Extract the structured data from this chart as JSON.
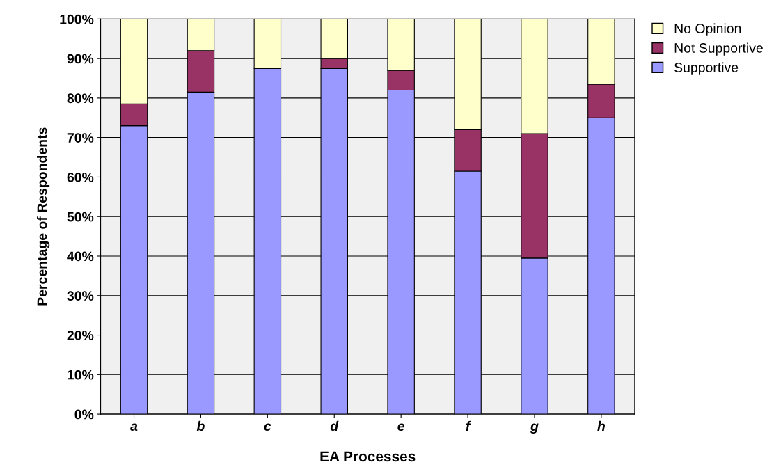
{
  "chart_data": {
    "type": "bar",
    "stacked": true,
    "xlabel": "EA Processes",
    "ylabel": "Percentage of Respondents",
    "categories": [
      "a",
      "b",
      "c",
      "d",
      "e",
      "f",
      "g",
      "h"
    ],
    "series": [
      {
        "name": "Supportive",
        "color": "#9999ff",
        "values": [
          73,
          81.5,
          87.5,
          87.5,
          82,
          61.5,
          39.5,
          75
        ]
      },
      {
        "name": "Not Supportive",
        "color": "#993366",
        "values": [
          5.5,
          10.5,
          0,
          2.5,
          5,
          10.5,
          31.5,
          8.5
        ]
      },
      {
        "name": "No Opinion",
        "color": "#ffffcc",
        "values": [
          21.5,
          8,
          12.5,
          10,
          13,
          28,
          29,
          16.5
        ]
      }
    ],
    "ylim": [
      0,
      100
    ],
    "yticks": [
      {
        "value": 0,
        "label": "0%"
      },
      {
        "value": 10,
        "label": "10%"
      },
      {
        "value": 20,
        "label": "20%"
      },
      {
        "value": 30,
        "label": "30%"
      },
      {
        "value": 40,
        "label": "40%"
      },
      {
        "value": 50,
        "label": "50%"
      },
      {
        "value": 60,
        "label": "60%"
      },
      {
        "value": 70,
        "label": "70%"
      },
      {
        "value": 80,
        "label": "80%"
      },
      {
        "value": 90,
        "label": "90%"
      },
      {
        "value": 100,
        "label": "100%"
      }
    ],
    "grid": "y",
    "legend": "top right"
  }
}
